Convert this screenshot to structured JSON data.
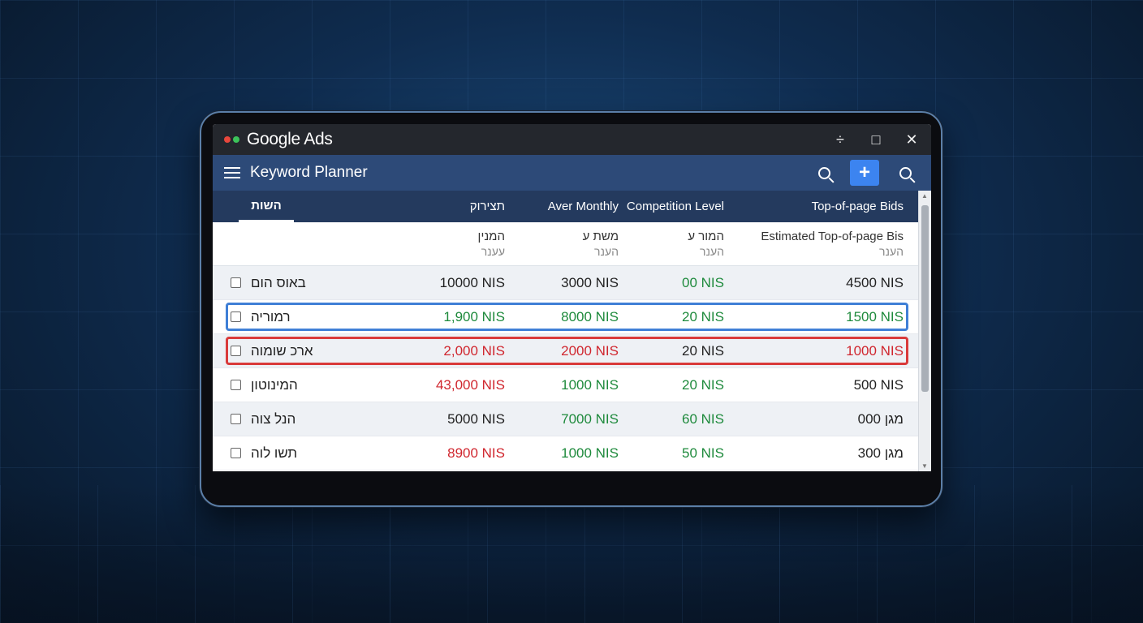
{
  "window": {
    "app_title": "Google Ads",
    "controls": {
      "minimize": "÷",
      "maximize": "□",
      "close": "✕"
    }
  },
  "toolbar": {
    "title": "Keyword Planner",
    "add_label": "+"
  },
  "table": {
    "tab_label": "השות",
    "headers": [
      "תצירוק",
      "Aver Monthly",
      "Competition Level",
      "Top-of-page Bids"
    ],
    "subheaders": [
      {
        "line1": "המנין",
        "line2": "עענר"
      },
      {
        "line1": "משת ע",
        "line2": "הענר"
      },
      {
        "line1": "המור ע",
        "line2": "הענר"
      },
      {
        "line1": "Estimated Top-of-page Bis",
        "line2": "הענר"
      }
    ],
    "rows": [
      {
        "keyword": "באוס הום",
        "v1": "10000 NIS",
        "v2": "3000 NIS",
        "v3": "00 NIS",
        "v4": "4500 NIS"
      },
      {
        "keyword": "רמוריה",
        "v1": "1,900 NIS",
        "v2": "8000 NIS",
        "v3": "20 NIS",
        "v4": "1500 NIS"
      },
      {
        "keyword": "ארכ שומוה",
        "v1": "2,000 NIS",
        "v2": "2000 NIS",
        "v3": "20 NIS",
        "v4": "1000 NIS"
      },
      {
        "keyword": "המינוטון",
        "v1": "43,000 NIS",
        "v2": "1000 NIS",
        "v3": "20 NIS",
        "v4": "500 NIS"
      },
      {
        "keyword": "הנל צוה",
        "v1": "5000 NIS",
        "v2": "7000 NIS",
        "v3": "60 NIS",
        "v4": "מגן 000"
      },
      {
        "keyword": "תשו לוה",
        "v1": "8900 NIS",
        "v2": "1000 NIS",
        "v3": "50 NIS",
        "v4": "מגן 300"
      }
    ]
  },
  "colors": {
    "accent": "#3c84f0",
    "toolbar": "#2d4a78",
    "header": "#243a5e",
    "green": "#1e8a3c",
    "red": "#d0262e"
  }
}
